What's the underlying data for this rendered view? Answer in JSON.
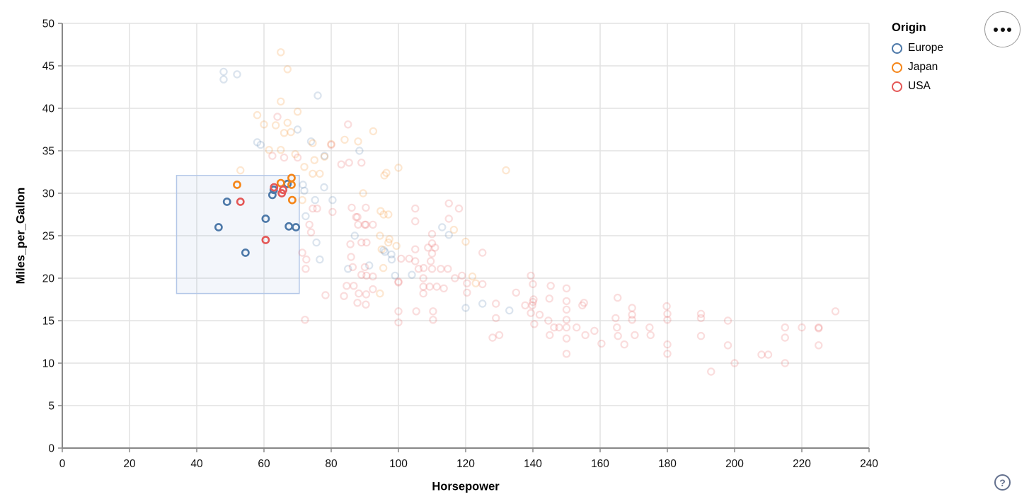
{
  "toolbar": {
    "menu_button_icon": "ellipsis",
    "help_button_label": "?"
  },
  "chart_data": {
    "type": "scatter",
    "title": "",
    "xlabel": "Horsepower",
    "ylabel": "Miles_per_Gallon",
    "xlim": [
      0,
      240
    ],
    "ylim": [
      0,
      50
    ],
    "x_ticks": [
      0,
      20,
      40,
      60,
      80,
      100,
      120,
      140,
      160,
      180,
      200,
      220,
      240
    ],
    "y_ticks": [
      0,
      5,
      10,
      15,
      20,
      25,
      30,
      35,
      40,
      45,
      50
    ],
    "grid": true,
    "legend": {
      "title": "Origin",
      "entries": [
        "Europe",
        "Japan",
        "USA"
      ],
      "position": "top-right"
    },
    "colors": {
      "grid": "#e2e2e2",
      "axis": "#888888",
      "label": "#101010",
      "brush_fill": "rgba(100,140,210,0.08)",
      "brush_stroke": "#b3c7e8"
    },
    "brush": {
      "x": [
        34,
        70.5
      ],
      "y": [
        18.2,
        32.1
      ]
    },
    "point_style": {
      "radius": 4.6,
      "stroke_width": 2.2,
      "faded_opacity": 0.2,
      "selected_opacity": 1
    },
    "series": [
      {
        "name": "Europe",
        "color": "#4c78a8",
        "points": [
          [
            49,
            29,
            1
          ],
          [
            46.5,
            26,
            1
          ],
          [
            54.5,
            23,
            1
          ],
          [
            60.5,
            27,
            1
          ],
          [
            62.5,
            29.8,
            1
          ],
          [
            62.9,
            30.4,
            1
          ],
          [
            67,
            31.1,
            1
          ],
          [
            67.4,
            26.1,
            1
          ],
          [
            69.5,
            26,
            1
          ],
          [
            48,
            44.3
          ],
          [
            48,
            43.4
          ],
          [
            52,
            44
          ],
          [
            76,
            41.5
          ],
          [
            70,
            37.5
          ],
          [
            58,
            36
          ],
          [
            59,
            35.7
          ],
          [
            74,
            36.1
          ],
          [
            78,
            34.4
          ],
          [
            88.4,
            35
          ],
          [
            71.6,
            31
          ],
          [
            72,
            30.3
          ],
          [
            72.4,
            27.3
          ],
          [
            77.9,
            30.7
          ],
          [
            75.2,
            29.2
          ],
          [
            80.4,
            29.2
          ],
          [
            87,
            25
          ],
          [
            85,
            21.1
          ],
          [
            91.3,
            21.5
          ],
          [
            75.6,
            24.2
          ],
          [
            76.6,
            22.2
          ],
          [
            95.6,
            23.3
          ],
          [
            97.9,
            22.8
          ],
          [
            96,
            23.1
          ],
          [
            98,
            22.2
          ],
          [
            99,
            20.3
          ],
          [
            104,
            20.4
          ],
          [
            113,
            26
          ],
          [
            115,
            25.1
          ],
          [
            120,
            16.5
          ],
          [
            125,
            17
          ],
          [
            133,
            16.2
          ]
        ]
      },
      {
        "name": "Japan",
        "color": "#f58518",
        "points": [
          [
            52,
            31,
            1
          ],
          [
            65,
            31.2,
            1
          ],
          [
            68.2,
            31.8,
            1
          ],
          [
            68.2,
            31,
            1
          ],
          [
            68.4,
            29.2,
            1
          ],
          [
            65,
            46.6
          ],
          [
            67,
            44.6
          ],
          [
            65,
            40.8
          ],
          [
            70,
            39.6
          ],
          [
            58,
            39.2
          ],
          [
            60,
            38.1
          ],
          [
            63.5,
            38
          ],
          [
            67,
            38.3
          ],
          [
            68,
            37.2
          ],
          [
            66,
            37.1
          ],
          [
            92.5,
            37.3
          ],
          [
            61.5,
            35.1
          ],
          [
            65,
            35.1
          ],
          [
            69.3,
            34.6
          ],
          [
            74.5,
            35.9
          ],
          [
            84,
            36.3
          ],
          [
            88,
            36.1
          ],
          [
            78,
            34.3
          ],
          [
            75,
            33.9
          ],
          [
            80,
            35.8
          ],
          [
            53,
            32.7
          ],
          [
            72,
            33.1
          ],
          [
            74.5,
            32.3
          ],
          [
            76.6,
            32.3
          ],
          [
            96.4,
            32.4
          ],
          [
            100,
            33
          ],
          [
            95.8,
            32.1
          ],
          [
            132,
            32.7
          ],
          [
            71.4,
            29.2
          ],
          [
            89.5,
            30
          ],
          [
            94.7,
            27.9
          ],
          [
            95.6,
            27.5
          ],
          [
            97,
            27.5
          ],
          [
            97.3,
            24.6
          ],
          [
            99.4,
            23.8
          ],
          [
            97,
            24.2
          ],
          [
            94.5,
            25
          ],
          [
            95,
            23.4
          ],
          [
            95.5,
            21.2
          ],
          [
            94.5,
            18.2
          ],
          [
            116.5,
            25.7
          ],
          [
            120,
            24.3
          ],
          [
            122,
            20.2
          ],
          [
            123,
            19.4
          ]
        ]
      },
      {
        "name": "USA",
        "color": "#e45756",
        "points": [
          [
            53,
            29,
            1
          ],
          [
            60.5,
            24.5,
            1
          ],
          [
            63,
            30.7,
            1
          ],
          [
            65.3,
            30,
            1
          ],
          [
            65.7,
            30.4,
            1
          ],
          [
            64,
            39
          ],
          [
            85,
            38.1
          ],
          [
            62.5,
            34.4
          ],
          [
            66,
            34.2
          ],
          [
            70,
            34.2
          ],
          [
            80,
            35.7
          ],
          [
            83,
            33.4
          ],
          [
            85.3,
            33.6
          ],
          [
            89,
            33.6
          ],
          [
            73.5,
            26.3
          ],
          [
            74,
            25.4
          ],
          [
            74.5,
            28.2
          ],
          [
            75.8,
            28.2
          ],
          [
            80.4,
            27.8
          ],
          [
            86.1,
            28.3
          ],
          [
            90.3,
            28.3
          ],
          [
            87.4,
            27.2
          ],
          [
            90.3,
            26.3
          ],
          [
            92.4,
            26.3
          ],
          [
            87.8,
            27.2
          ],
          [
            88,
            26.3
          ],
          [
            90,
            26.3
          ],
          [
            85.7,
            24
          ],
          [
            89,
            24.2
          ],
          [
            90.5,
            24.2
          ],
          [
            85.9,
            22.5
          ],
          [
            86.4,
            21.3
          ],
          [
            90,
            21.3
          ],
          [
            89,
            20.4
          ],
          [
            90.5,
            20.3
          ],
          [
            92.4,
            20.2
          ],
          [
            86.7,
            19.1
          ],
          [
            88.2,
            18.2
          ],
          [
            90.4,
            18.1
          ],
          [
            92.4,
            18.7
          ],
          [
            87.8,
            17.1
          ],
          [
            90.3,
            16.9
          ],
          [
            84.6,
            19.1
          ],
          [
            83.8,
            17.9
          ],
          [
            71.4,
            23
          ],
          [
            72.6,
            22.2
          ],
          [
            72.4,
            21.1
          ],
          [
            78.3,
            18
          ],
          [
            72.2,
            15.1
          ],
          [
            100.8,
            22.3
          ],
          [
            103.2,
            22.3
          ],
          [
            105,
            23.4
          ],
          [
            105,
            22
          ],
          [
            106,
            21.1
          ],
          [
            107.5,
            21.2
          ],
          [
            108.8,
            23.6
          ],
          [
            110.9,
            23.6
          ],
          [
            112.6,
            21.1
          ],
          [
            114.7,
            21.1
          ],
          [
            105,
            28.2
          ],
          [
            105,
            26.7
          ],
          [
            115,
            28.8
          ],
          [
            118,
            28.2
          ],
          [
            115,
            27
          ],
          [
            110,
            25.2
          ],
          [
            110,
            24.1
          ],
          [
            110,
            22.9
          ],
          [
            109.6,
            22
          ],
          [
            110,
            21.1
          ],
          [
            100,
            19.5
          ],
          [
            100,
            19.6
          ],
          [
            107.4,
            20
          ],
          [
            107.4,
            19
          ],
          [
            107.4,
            18.2
          ],
          [
            109.3,
            19
          ],
          [
            111.4,
            19
          ],
          [
            113.5,
            18.8
          ],
          [
            116.8,
            20
          ],
          [
            118.9,
            20.3
          ],
          [
            100,
            16.1
          ],
          [
            105.3,
            16.1
          ],
          [
            110.3,
            16.1
          ],
          [
            100,
            14.8
          ],
          [
            110.3,
            15.1
          ],
          [
            120.4,
            18.3
          ],
          [
            120.4,
            19.4
          ],
          [
            125,
            19.3
          ],
          [
            125,
            23
          ],
          [
            128,
            13
          ],
          [
            130,
            13.3
          ],
          [
            129,
            17
          ],
          [
            129,
            15.3
          ],
          [
            135,
            18.3
          ],
          [
            137.7,
            16.8
          ],
          [
            139.4,
            20.3
          ],
          [
            140,
            19.3
          ],
          [
            140,
            17.2
          ],
          [
            140.2,
            17.5
          ],
          [
            139.8,
            16.8
          ],
          [
            139.4,
            15.9
          ],
          [
            140.4,
            14.6
          ],
          [
            142,
            15.7
          ],
          [
            144.6,
            15
          ],
          [
            145,
            13.3
          ],
          [
            145.3,
            19.1
          ],
          [
            144.9,
            17.6
          ],
          [
            146.3,
            14.2
          ],
          [
            147.8,
            14.2
          ],
          [
            150,
            18.8
          ],
          [
            150,
            17.3
          ],
          [
            150,
            16.3
          ],
          [
            150,
            15.1
          ],
          [
            150,
            14.2
          ],
          [
            150,
            12.9
          ],
          [
            150,
            11.1
          ],
          [
            153,
            14.2
          ],
          [
            155.2,
            17.1
          ],
          [
            155.6,
            13.3
          ],
          [
            154.7,
            16.8
          ],
          [
            158.3,
            13.8
          ],
          [
            160.4,
            12.3
          ],
          [
            164.6,
            15.3
          ],
          [
            165,
            14.2
          ],
          [
            165.3,
            13.2
          ],
          [
            167.2,
            12.2
          ],
          [
            165.2,
            17.7
          ],
          [
            169.5,
            16.5
          ],
          [
            169.5,
            15.7
          ],
          [
            169.5,
            15.1
          ],
          [
            170.3,
            13.3
          ],
          [
            174.7,
            14.2
          ],
          [
            175,
            13.3
          ],
          [
            179.8,
            16.7
          ],
          [
            180,
            15.8
          ],
          [
            180,
            15.1
          ],
          [
            180,
            12.2
          ],
          [
            180,
            11.1
          ],
          [
            190,
            15.8
          ],
          [
            190,
            15.3
          ],
          [
            190,
            13.2
          ],
          [
            198,
            15
          ],
          [
            198,
            12.1
          ],
          [
            193,
            9
          ],
          [
            200,
            10
          ],
          [
            208,
            11
          ],
          [
            210,
            11
          ],
          [
            215,
            14.2
          ],
          [
            215,
            13
          ],
          [
            215,
            10
          ],
          [
            220,
            14.2
          ],
          [
            225,
            14.2
          ],
          [
            225,
            14.1
          ],
          [
            225,
            12.1
          ],
          [
            230,
            16.1
          ]
        ]
      }
    ]
  }
}
